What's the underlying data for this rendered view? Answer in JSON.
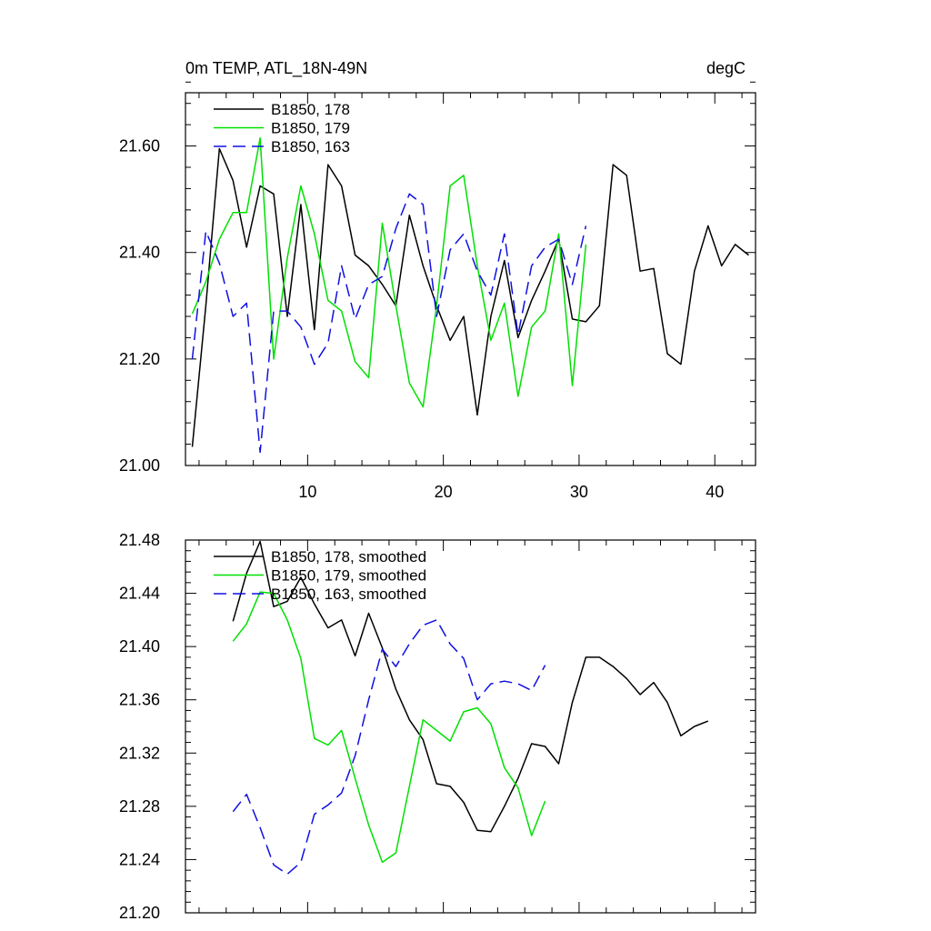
{
  "chart_data": [
    {
      "type": "line",
      "title": "0m TEMP, ATL_18N-49N",
      "units": "degC",
      "xlim": [
        1,
        43
      ],
      "ylim": [
        21.0,
        21.7
      ],
      "xticks": [
        10,
        20,
        30,
        40
      ],
      "xtick_labels": [
        "10",
        "20",
        "30",
        "40"
      ],
      "yticks": [
        21.0,
        21.2,
        21.4,
        21.6
      ],
      "ytick_labels": [
        "21.00",
        "21.20",
        "21.40",
        "21.60"
      ],
      "legend": "top-left",
      "series": [
        {
          "name": "B1850, 178",
          "color": "#000000",
          "dash": "solid",
          "x": [
            1.5,
            2.5,
            3.5,
            4.5,
            5.5,
            6.5,
            7.5,
            8.5,
            9.5,
            10.5,
            11.5,
            12.5,
            13.5,
            14.5,
            15.5,
            16.5,
            17.5,
            18.5,
            19.5,
            20.5,
            21.5,
            22.5,
            23.5,
            24.5,
            25.5,
            26.5,
            27.5,
            28.5,
            29.5,
            30.5,
            31.5,
            32.5,
            33.5,
            34.5,
            35.5,
            36.5,
            37.5,
            38.5,
            39.5,
            40.5,
            41.5,
            42.5
          ],
          "y": [
            21.035,
            21.3,
            21.595,
            21.535,
            21.41,
            21.525,
            21.51,
            21.28,
            21.49,
            21.255,
            21.565,
            21.525,
            21.395,
            21.375,
            21.34,
            21.3,
            21.47,
            21.375,
            21.3,
            21.235,
            21.28,
            21.095,
            21.28,
            21.385,
            21.24,
            21.31,
            21.365,
            21.425,
            21.275,
            21.27,
            21.3,
            21.565,
            21.545,
            21.365,
            21.37,
            21.21,
            21.19,
            21.365,
            21.45,
            21.375,
            21.415,
            21.395
          ]
        },
        {
          "name": "B1850, 179",
          "color": "#00e000",
          "dash": "solid",
          "x": [
            1.5,
            2.5,
            3.5,
            4.5,
            5.5,
            6.5,
            7.5,
            8.5,
            9.5,
            10.5,
            11.5,
            12.5,
            13.5,
            14.5,
            15.5,
            16.5,
            17.5,
            18.5,
            19.5,
            20.5,
            21.5,
            22.5,
            23.5,
            24.5,
            25.5,
            26.5,
            27.5,
            28.5,
            29.5,
            30.5
          ],
          "y": [
            21.285,
            21.345,
            21.425,
            21.475,
            21.475,
            21.615,
            21.2,
            21.39,
            21.525,
            21.435,
            21.31,
            21.29,
            21.195,
            21.165,
            21.455,
            21.3,
            21.155,
            21.11,
            21.3,
            21.525,
            21.545,
            21.375,
            21.235,
            21.305,
            21.13,
            21.26,
            21.29,
            21.435,
            21.15,
            21.415
          ]
        },
        {
          "name": "B1850, 163",
          "color": "#1010e0",
          "dash": "dashed",
          "x": [
            1.5,
            2.5,
            3.5,
            4.5,
            5.5,
            6.5,
            7.5,
            8.5,
            9.5,
            10.5,
            11.5,
            12.5,
            13.5,
            14.5,
            15.5,
            16.5,
            17.5,
            18.5,
            19.5,
            20.5,
            21.5,
            22.5,
            23.5,
            24.5,
            25.5,
            26.5,
            27.5,
            28.5,
            29.5,
            30.5
          ],
          "y": [
            21.2,
            21.44,
            21.38,
            21.28,
            21.305,
            21.025,
            21.29,
            21.29,
            21.26,
            21.19,
            21.23,
            21.375,
            21.275,
            21.34,
            21.355,
            21.445,
            21.51,
            21.49,
            21.28,
            21.405,
            21.435,
            21.365,
            21.32,
            21.435,
            21.245,
            21.375,
            21.41,
            21.425,
            21.34,
            21.45
          ]
        }
      ]
    },
    {
      "type": "line",
      "title": "",
      "xlim": [
        1,
        43
      ],
      "ylim": [
        21.2,
        21.48
      ],
      "xticks": [
        10,
        20,
        30,
        40
      ],
      "yticks": [
        21.2,
        21.24,
        21.28,
        21.32,
        21.36,
        21.4,
        21.44,
        21.48
      ],
      "ytick_labels": [
        "21.20",
        "21.24",
        "21.28",
        "21.32",
        "21.36",
        "21.40",
        "21.44",
        "21.48"
      ],
      "legend": "top-left",
      "series": [
        {
          "name": "B1850, 178, smoothed",
          "color": "#000000",
          "dash": "solid",
          "x": [
            4.5,
            5.5,
            6.5,
            7.5,
            8.5,
            9.5,
            10.5,
            11.5,
            12.5,
            13.5,
            14.5,
            15.5,
            16.5,
            17.5,
            18.5,
            19.5,
            20.5,
            21.5,
            22.5,
            23.5,
            24.5,
            25.5,
            26.5,
            27.5,
            28.5,
            29.5,
            30.5,
            31.5,
            32.5,
            33.5,
            34.5,
            35.5,
            36.5,
            37.5,
            38.5,
            39.5
          ],
          "y": [
            21.419,
            21.455,
            21.479,
            21.43,
            21.434,
            21.452,
            21.432,
            21.414,
            21.42,
            21.393,
            21.425,
            21.399,
            21.368,
            21.345,
            21.33,
            21.297,
            21.295,
            21.283,
            21.262,
            21.261,
            21.28,
            21.301,
            21.327,
            21.325,
            21.312,
            21.358,
            21.392,
            21.392,
            21.385,
            21.376,
            21.364,
            21.373,
            21.358,
            21.333,
            21.34,
            21.344
          ]
        },
        {
          "name": "B1850, 179, smoothed",
          "color": "#00e000",
          "dash": "solid",
          "x": [
            4.5,
            5.5,
            6.5,
            7.5,
            8.5,
            9.5,
            10.5,
            11.5,
            12.5,
            13.5,
            14.5,
            15.5,
            16.5,
            17.5,
            18.5,
            19.5,
            20.5,
            21.5,
            22.5,
            23.5,
            24.5,
            25.5,
            26.5,
            27.5
          ],
          "y": [
            21.404,
            21.417,
            21.441,
            21.44,
            21.42,
            21.391,
            21.331,
            21.326,
            21.337,
            21.301,
            21.266,
            21.238,
            21.245,
            21.295,
            21.345,
            21.337,
            21.329,
            21.351,
            21.354,
            21.342,
            21.309,
            21.294,
            21.258,
            21.284
          ]
        },
        {
          "name": "B1850, 163, smoothed",
          "color": "#1010e0",
          "dash": "dashed",
          "x": [
            4.5,
            5.5,
            6.5,
            7.5,
            8.5,
            9.5,
            10.5,
            11.5,
            12.5,
            13.5,
            14.5,
            15.5,
            16.5,
            17.5,
            18.5,
            19.5,
            20.5,
            21.5,
            22.5,
            23.5,
            24.5,
            25.5,
            26.5,
            27.5
          ],
          "y": [
            21.276,
            21.289,
            21.264,
            21.236,
            21.229,
            21.238,
            21.274,
            21.281,
            21.29,
            21.318,
            21.36,
            21.398,
            21.385,
            21.402,
            21.416,
            21.42,
            21.402,
            21.391,
            21.36,
            21.372,
            21.374,
            21.372,
            21.367,
            21.386
          ]
        }
      ]
    }
  ]
}
